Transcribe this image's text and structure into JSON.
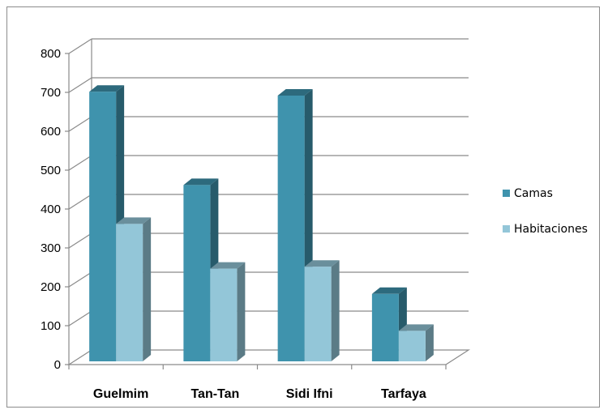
{
  "chart_data": {
    "type": "bar",
    "categories": [
      "Guelmim",
      "Tan-Tan",
      "Sidi Ifni",
      "Tarfaya"
    ],
    "series": [
      {
        "name": "Camas",
        "values": [
          710,
          470,
          700,
          190
        ],
        "color": "#3F93AD"
      },
      {
        "name": "Habitaciones",
        "values": [
          370,
          255,
          260,
          95
        ],
        "color": "#93C6D8"
      }
    ],
    "yticks": [
      0,
      100,
      200,
      300,
      400,
      500,
      600,
      700,
      800
    ],
    "ylim": [
      0,
      800
    ],
    "grid": true,
    "legend_position": "right",
    "style": "3d-clustered-column"
  }
}
